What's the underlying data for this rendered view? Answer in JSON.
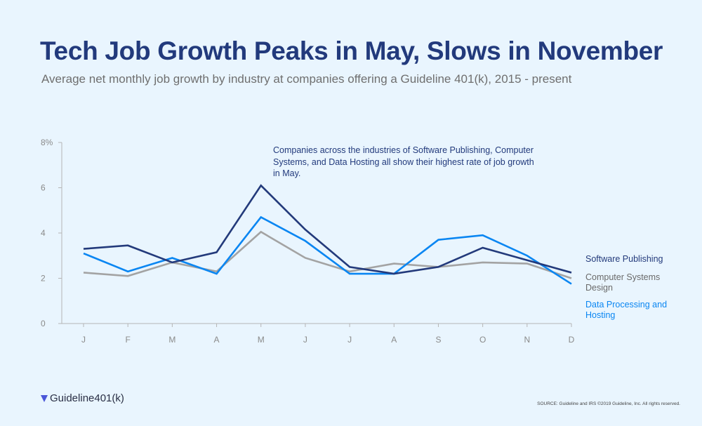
{
  "header": {
    "title": "Tech Job Growth Peaks in May, Slows in November",
    "subtitle": "Average net monthly job growth by industry at companies offering a Guideline 401(k), 2015 - present"
  },
  "chart_data": {
    "type": "line",
    "title": "Tech Job Growth Peaks in May, Slows in November",
    "xlabel": "",
    "ylabel": "",
    "categories": [
      "J",
      "F",
      "M",
      "A",
      "M",
      "J",
      "J",
      "A",
      "S",
      "O",
      "N",
      "D"
    ],
    "ylim": [
      0,
      8
    ],
    "yticks": [
      "0",
      "2",
      "4",
      "6",
      "8%"
    ],
    "ytick_values": [
      0,
      2,
      4,
      6,
      8
    ],
    "grid": false,
    "legend_placement": "right",
    "annotation": "Companies across the industries of Software Publishing, Computer Systems, and Data Hosting all show their highest rate of job growth in May.",
    "series": [
      {
        "name": "Computer Systems Design",
        "color": "#a3a3a3",
        "values": [
          2.25,
          2.1,
          2.7,
          2.3,
          4.05,
          2.9,
          2.3,
          2.65,
          2.5,
          2.7,
          2.65,
          2.0
        ]
      },
      {
        "name": "Data Processing and Hosting",
        "color": "#0a86f2",
        "values": [
          3.1,
          2.3,
          2.9,
          2.2,
          4.7,
          3.65,
          2.2,
          2.2,
          3.7,
          3.9,
          3.0,
          1.75
        ]
      },
      {
        "name": "Software Publishing",
        "color": "#233a7b",
        "values": [
          3.3,
          3.45,
          2.7,
          3.15,
          6.1,
          4.15,
          2.5,
          2.2,
          2.5,
          3.35,
          2.8,
          2.25
        ]
      }
    ]
  },
  "legend": {
    "software": "Software Publishing",
    "computer": "Computer Systems Design",
    "data": "Data Processing and Hosting"
  },
  "footer": {
    "logo": "Guideline401(k)",
    "source": "SOURCE: Guideline and IRS  ©2019 Guideline, Inc. All rights reserved."
  }
}
